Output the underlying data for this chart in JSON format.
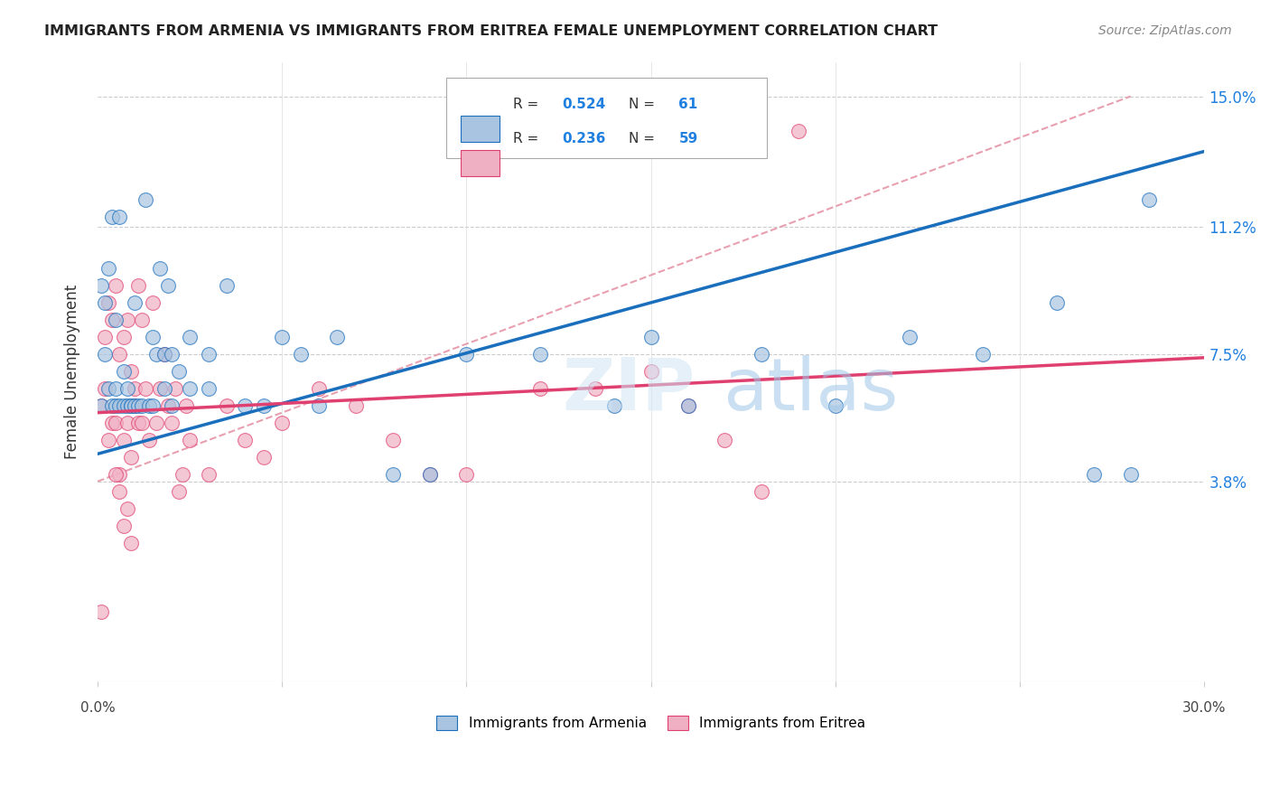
{
  "title": "IMMIGRANTS FROM ARMENIA VS IMMIGRANTS FROM ERITREA FEMALE UNEMPLOYMENT CORRELATION CHART",
  "source": "Source: ZipAtlas.com",
  "ylabel": "Female Unemployment",
  "legend_label_1": "Immigrants from Armenia",
  "legend_label_2": "Immigrants from Eritrea",
  "R1": "0.524",
  "N1": "61",
  "R2": "0.236",
  "N2": "59",
  "color_armenia": "#a8c4e0",
  "color_eritrea": "#f0b0c4",
  "color_trend_armenia": "#1a6fbd",
  "color_trend_eritrea": "#e04070",
  "color_ref_line": "#e8a0b0",
  "xmin": 0.0,
  "xmax": 0.3,
  "ymin": -0.02,
  "ymax": 0.16,
  "yticks": [
    0.038,
    0.075,
    0.112,
    0.15
  ],
  "ytick_labels": [
    "3.8%",
    "7.5%",
    "11.2%",
    "15.0%"
  ],
  "xticks": [
    0.0,
    0.05,
    0.1,
    0.15,
    0.2,
    0.25,
    0.3
  ],
  "watermark": "ZIPatlas",
  "armenia_x": [
    0.001,
    0.001,
    0.002,
    0.002,
    0.003,
    0.003,
    0.004,
    0.004,
    0.005,
    0.005,
    0.005,
    0.006,
    0.006,
    0.007,
    0.007,
    0.008,
    0.008,
    0.009,
    0.009,
    0.01,
    0.01,
    0.011,
    0.012,
    0.013,
    0.014,
    0.015,
    0.016,
    0.017,
    0.018,
    0.018,
    0.019,
    0.02,
    0.022,
    0.025,
    0.03,
    0.035,
    0.04,
    0.045,
    0.05,
    0.055,
    0.06,
    0.065,
    0.08,
    0.09,
    0.1,
    0.12,
    0.14,
    0.15,
    0.16,
    0.18,
    0.2,
    0.22,
    0.24,
    0.26,
    0.27,
    0.28,
    0.285,
    0.015,
    0.02,
    0.025,
    0.03
  ],
  "armenia_y": [
    0.06,
    0.095,
    0.075,
    0.09,
    0.065,
    0.1,
    0.06,
    0.115,
    0.065,
    0.085,
    0.06,
    0.06,
    0.115,
    0.07,
    0.06,
    0.06,
    0.065,
    0.06,
    0.06,
    0.06,
    0.09,
    0.06,
    0.06,
    0.12,
    0.06,
    0.06,
    0.075,
    0.1,
    0.075,
    0.065,
    0.095,
    0.06,
    0.07,
    0.08,
    0.075,
    0.095,
    0.06,
    0.06,
    0.08,
    0.075,
    0.06,
    0.08,
    0.04,
    0.04,
    0.075,
    0.075,
    0.06,
    0.08,
    0.06,
    0.075,
    0.06,
    0.08,
    0.075,
    0.09,
    0.04,
    0.04,
    0.12,
    0.08,
    0.075,
    0.065,
    0.065
  ],
  "eritrea_x": [
    0.001,
    0.001,
    0.002,
    0.002,
    0.003,
    0.003,
    0.004,
    0.004,
    0.005,
    0.005,
    0.006,
    0.006,
    0.007,
    0.007,
    0.008,
    0.008,
    0.009,
    0.009,
    0.01,
    0.01,
    0.011,
    0.011,
    0.012,
    0.012,
    0.013,
    0.014,
    0.015,
    0.016,
    0.017,
    0.018,
    0.019,
    0.02,
    0.021,
    0.022,
    0.023,
    0.024,
    0.025,
    0.03,
    0.035,
    0.04,
    0.045,
    0.05,
    0.06,
    0.07,
    0.08,
    0.09,
    0.1,
    0.12,
    0.135,
    0.15,
    0.16,
    0.17,
    0.18,
    0.19,
    0.005,
    0.006,
    0.007,
    0.008,
    0.009
  ],
  "eritrea_y": [
    0.0,
    0.06,
    0.065,
    0.08,
    0.05,
    0.09,
    0.055,
    0.085,
    0.055,
    0.095,
    0.04,
    0.075,
    0.05,
    0.08,
    0.085,
    0.055,
    0.045,
    0.07,
    0.06,
    0.065,
    0.055,
    0.095,
    0.085,
    0.055,
    0.065,
    0.05,
    0.09,
    0.055,
    0.065,
    0.075,
    0.06,
    0.055,
    0.065,
    0.035,
    0.04,
    0.06,
    0.05,
    0.04,
    0.06,
    0.05,
    0.045,
    0.055,
    0.065,
    0.06,
    0.05,
    0.04,
    0.04,
    0.065,
    0.065,
    0.07,
    0.06,
    0.05,
    0.035,
    0.14,
    0.04,
    0.035,
    0.025,
    0.03,
    0.02
  ],
  "trend_armenia_x0": 0.0,
  "trend_armenia_y0": 0.046,
  "trend_armenia_x1": 0.3,
  "trend_armenia_y1": 0.134,
  "trend_eritrea_x0": 0.0,
  "trend_eritrea_y0": 0.058,
  "trend_eritrea_x1": 0.3,
  "trend_eritrea_y1": 0.074,
  "ref_line_x0": 0.0,
  "ref_line_y0": 0.038,
  "ref_line_x1": 0.28,
  "ref_line_y1": 0.15
}
